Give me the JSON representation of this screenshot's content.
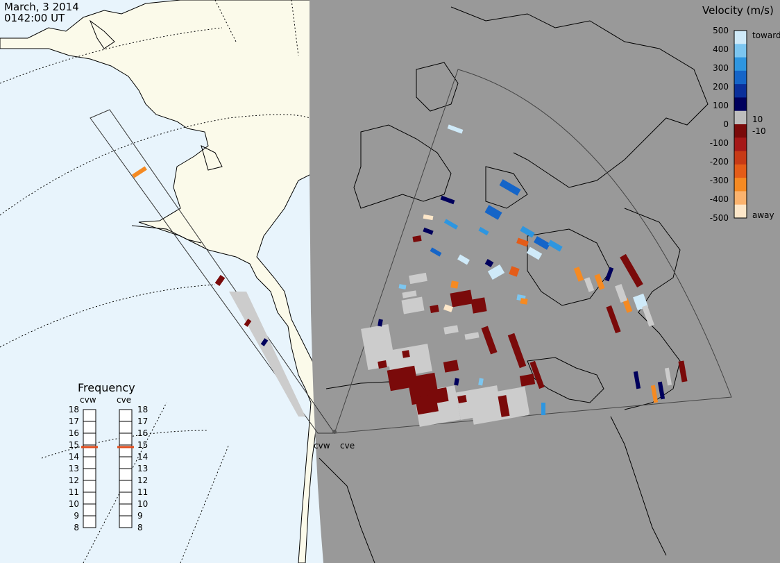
{
  "header": {
    "date": "March, 3 2014",
    "time": "0142:00 UT"
  },
  "legend": {
    "title": "Velocity (m/s)",
    "ticks": [
      "500",
      "400",
      "300",
      "200",
      "100",
      "0",
      "-100",
      "-200",
      "-300",
      "-400",
      "-500"
    ],
    "toward_label": "toward",
    "away_label": "away",
    "small_pos": "10",
    "small_neg": "-10",
    "colors": [
      "#fde7c9",
      "#fbb36e",
      "#f58a22",
      "#e45c18",
      "#c73a16",
      "#a51818",
      "#7a0a0a",
      "#bdbdbd",
      "#00005c",
      "#0a2f9a",
      "#1565c8",
      "#2e96e0",
      "#7cc6f0",
      "#cfeaf9"
    ]
  },
  "frequency": {
    "title": "Frequency",
    "radars": [
      "cvw",
      "cve"
    ],
    "ticks": [
      "18",
      "17",
      "16",
      "15",
      "14",
      "13",
      "12",
      "11",
      "10",
      "9",
      "8"
    ],
    "selected_mhz": 15
  },
  "sites": [
    "cvw",
    "cve"
  ],
  "colors": {
    "ocean": "#e8f4fc",
    "land": "#fbfaea",
    "night": "#999999",
    "gs": "#cccccc",
    "marker": "#e04a1a"
  }
}
